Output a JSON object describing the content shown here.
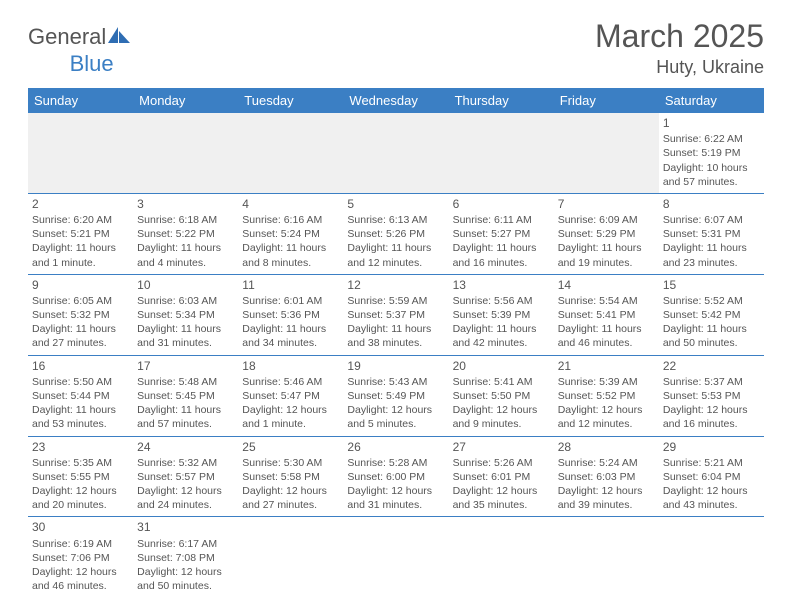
{
  "logo": {
    "text1": "General",
    "text2": "Blue"
  },
  "title": "March 2025",
  "location": "Huty, Ukraine",
  "header_bg": "#3b7fc4",
  "header_fg": "#ffffff",
  "border_color": "#3b7fc4",
  "text_color": "#555555",
  "empty_bg": "#f0f0f0",
  "days": [
    "Sunday",
    "Monday",
    "Tuesday",
    "Wednesday",
    "Thursday",
    "Friday",
    "Saturday"
  ],
  "weeks": [
    [
      null,
      null,
      null,
      null,
      null,
      null,
      {
        "n": "1",
        "sr": "Sunrise: 6:22 AM",
        "ss": "Sunset: 5:19 PM",
        "d1": "Daylight: 10 hours",
        "d2": "and 57 minutes."
      }
    ],
    [
      {
        "n": "2",
        "sr": "Sunrise: 6:20 AM",
        "ss": "Sunset: 5:21 PM",
        "d1": "Daylight: 11 hours",
        "d2": "and 1 minute."
      },
      {
        "n": "3",
        "sr": "Sunrise: 6:18 AM",
        "ss": "Sunset: 5:22 PM",
        "d1": "Daylight: 11 hours",
        "d2": "and 4 minutes."
      },
      {
        "n": "4",
        "sr": "Sunrise: 6:16 AM",
        "ss": "Sunset: 5:24 PM",
        "d1": "Daylight: 11 hours",
        "d2": "and 8 minutes."
      },
      {
        "n": "5",
        "sr": "Sunrise: 6:13 AM",
        "ss": "Sunset: 5:26 PM",
        "d1": "Daylight: 11 hours",
        "d2": "and 12 minutes."
      },
      {
        "n": "6",
        "sr": "Sunrise: 6:11 AM",
        "ss": "Sunset: 5:27 PM",
        "d1": "Daylight: 11 hours",
        "d2": "and 16 minutes."
      },
      {
        "n": "7",
        "sr": "Sunrise: 6:09 AM",
        "ss": "Sunset: 5:29 PM",
        "d1": "Daylight: 11 hours",
        "d2": "and 19 minutes."
      },
      {
        "n": "8",
        "sr": "Sunrise: 6:07 AM",
        "ss": "Sunset: 5:31 PM",
        "d1": "Daylight: 11 hours",
        "d2": "and 23 minutes."
      }
    ],
    [
      {
        "n": "9",
        "sr": "Sunrise: 6:05 AM",
        "ss": "Sunset: 5:32 PM",
        "d1": "Daylight: 11 hours",
        "d2": "and 27 minutes."
      },
      {
        "n": "10",
        "sr": "Sunrise: 6:03 AM",
        "ss": "Sunset: 5:34 PM",
        "d1": "Daylight: 11 hours",
        "d2": "and 31 minutes."
      },
      {
        "n": "11",
        "sr": "Sunrise: 6:01 AM",
        "ss": "Sunset: 5:36 PM",
        "d1": "Daylight: 11 hours",
        "d2": "and 34 minutes."
      },
      {
        "n": "12",
        "sr": "Sunrise: 5:59 AM",
        "ss": "Sunset: 5:37 PM",
        "d1": "Daylight: 11 hours",
        "d2": "and 38 minutes."
      },
      {
        "n": "13",
        "sr": "Sunrise: 5:56 AM",
        "ss": "Sunset: 5:39 PM",
        "d1": "Daylight: 11 hours",
        "d2": "and 42 minutes."
      },
      {
        "n": "14",
        "sr": "Sunrise: 5:54 AM",
        "ss": "Sunset: 5:41 PM",
        "d1": "Daylight: 11 hours",
        "d2": "and 46 minutes."
      },
      {
        "n": "15",
        "sr": "Sunrise: 5:52 AM",
        "ss": "Sunset: 5:42 PM",
        "d1": "Daylight: 11 hours",
        "d2": "and 50 minutes."
      }
    ],
    [
      {
        "n": "16",
        "sr": "Sunrise: 5:50 AM",
        "ss": "Sunset: 5:44 PM",
        "d1": "Daylight: 11 hours",
        "d2": "and 53 minutes."
      },
      {
        "n": "17",
        "sr": "Sunrise: 5:48 AM",
        "ss": "Sunset: 5:45 PM",
        "d1": "Daylight: 11 hours",
        "d2": "and 57 minutes."
      },
      {
        "n": "18",
        "sr": "Sunrise: 5:46 AM",
        "ss": "Sunset: 5:47 PM",
        "d1": "Daylight: 12 hours",
        "d2": "and 1 minute."
      },
      {
        "n": "19",
        "sr": "Sunrise: 5:43 AM",
        "ss": "Sunset: 5:49 PM",
        "d1": "Daylight: 12 hours",
        "d2": "and 5 minutes."
      },
      {
        "n": "20",
        "sr": "Sunrise: 5:41 AM",
        "ss": "Sunset: 5:50 PM",
        "d1": "Daylight: 12 hours",
        "d2": "and 9 minutes."
      },
      {
        "n": "21",
        "sr": "Sunrise: 5:39 AM",
        "ss": "Sunset: 5:52 PM",
        "d1": "Daylight: 12 hours",
        "d2": "and 12 minutes."
      },
      {
        "n": "22",
        "sr": "Sunrise: 5:37 AM",
        "ss": "Sunset: 5:53 PM",
        "d1": "Daylight: 12 hours",
        "d2": "and 16 minutes."
      }
    ],
    [
      {
        "n": "23",
        "sr": "Sunrise: 5:35 AM",
        "ss": "Sunset: 5:55 PM",
        "d1": "Daylight: 12 hours",
        "d2": "and 20 minutes."
      },
      {
        "n": "24",
        "sr": "Sunrise: 5:32 AM",
        "ss": "Sunset: 5:57 PM",
        "d1": "Daylight: 12 hours",
        "d2": "and 24 minutes."
      },
      {
        "n": "25",
        "sr": "Sunrise: 5:30 AM",
        "ss": "Sunset: 5:58 PM",
        "d1": "Daylight: 12 hours",
        "d2": "and 27 minutes."
      },
      {
        "n": "26",
        "sr": "Sunrise: 5:28 AM",
        "ss": "Sunset: 6:00 PM",
        "d1": "Daylight: 12 hours",
        "d2": "and 31 minutes."
      },
      {
        "n": "27",
        "sr": "Sunrise: 5:26 AM",
        "ss": "Sunset: 6:01 PM",
        "d1": "Daylight: 12 hours",
        "d2": "and 35 minutes."
      },
      {
        "n": "28",
        "sr": "Sunrise: 5:24 AM",
        "ss": "Sunset: 6:03 PM",
        "d1": "Daylight: 12 hours",
        "d2": "and 39 minutes."
      },
      {
        "n": "29",
        "sr": "Sunrise: 5:21 AM",
        "ss": "Sunset: 6:04 PM",
        "d1": "Daylight: 12 hours",
        "d2": "and 43 minutes."
      }
    ],
    [
      {
        "n": "30",
        "sr": "Sunrise: 6:19 AM",
        "ss": "Sunset: 7:06 PM",
        "d1": "Daylight: 12 hours",
        "d2": "and 46 minutes."
      },
      {
        "n": "31",
        "sr": "Sunrise: 6:17 AM",
        "ss": "Sunset: 7:08 PM",
        "d1": "Daylight: 12 hours",
        "d2": "and 50 minutes."
      },
      null,
      null,
      null,
      null,
      null
    ]
  ]
}
